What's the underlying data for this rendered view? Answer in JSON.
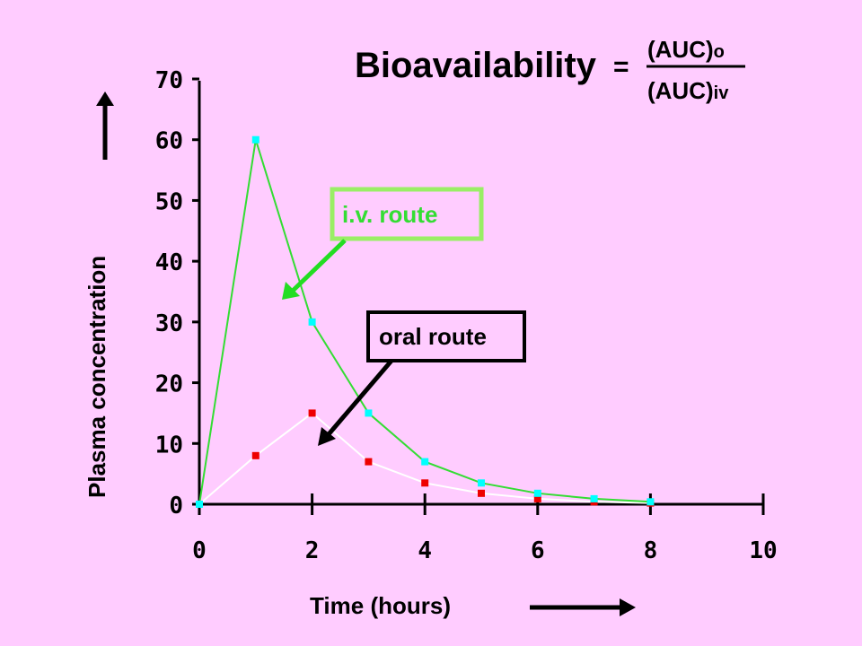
{
  "formula": {
    "lhs": "Bioavailability",
    "operator": "=",
    "numerator": "(AUC)",
    "numerator_sub": "o",
    "denominator": "(AUC)",
    "denominator_sub": "iv"
  },
  "callouts": {
    "iv": "i.v. route",
    "oral": "oral route"
  },
  "colors": {
    "background": "#FFCCFF",
    "iv_line": "#33DD33",
    "iv_marker": "#00FFFF",
    "oral_line": "#FFFFFF",
    "oral_marker": "#EE0000",
    "iv_box_border": "#99EE66",
    "iv_arrow": "#22DD22"
  },
  "chart_data": {
    "type": "line",
    "title": "",
    "xlabel": "Time (hours)",
    "ylabel": "Plasma concentration",
    "xlim": [
      0,
      10
    ],
    "ylim": [
      0,
      70
    ],
    "x_ticks": [
      "0",
      "2",
      "4",
      "6",
      "8",
      "10"
    ],
    "y_ticks": [
      "0",
      "10",
      "20",
      "30",
      "40",
      "50",
      "60",
      "70"
    ],
    "grid": false,
    "series": [
      {
        "route": "iv",
        "x": [
          0,
          1,
          2,
          3,
          4,
          5,
          6,
          7,
          8
        ],
        "values": [
          0,
          60,
          30,
          15,
          7,
          3.5,
          1.8,
          0.9,
          0.4
        ]
      },
      {
        "route": "oral",
        "x": [
          0,
          1,
          2,
          3,
          4,
          5,
          6,
          7,
          8
        ],
        "values": [
          0,
          8,
          15,
          7,
          3.5,
          1.8,
          0.9,
          0.4,
          0.2
        ]
      }
    ]
  }
}
